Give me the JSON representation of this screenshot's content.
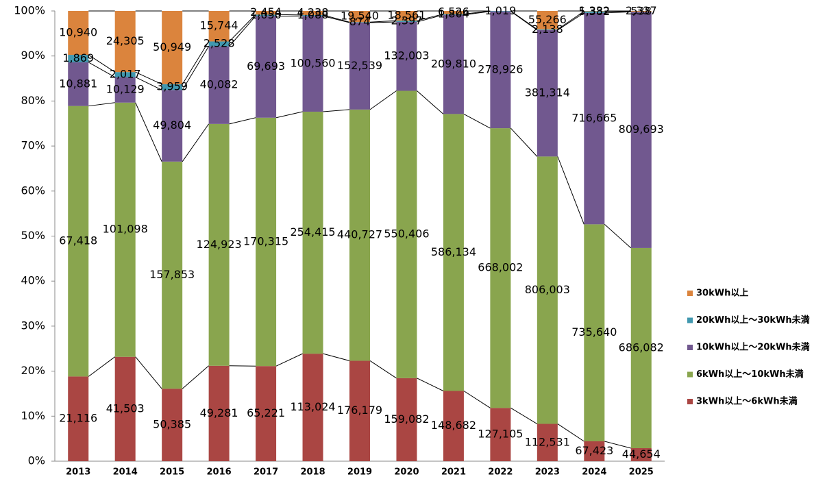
{
  "chart_data": {
    "type": "bar",
    "stacked": "percent",
    "categories": [
      "2013",
      "2014",
      "2015",
      "2016",
      "2017",
      "2018",
      "2019",
      "2020",
      "2021",
      "2022",
      "2023",
      "2024",
      "2025"
    ],
    "series": [
      {
        "name": "3kWh以上～6kWh未満",
        "color": "#aa4643",
        "values": [
          21116,
          41503,
          50385,
          49281,
          65221,
          113024,
          176179,
          159082,
          148682,
          127105,
          112531,
          67423,
          44654
        ]
      },
      {
        "name": "6kWh以上～10kWh未満",
        "color": "#89a54e",
        "values": [
          67418,
          101098,
          157853,
          124923,
          170315,
          254415,
          440727,
          550406,
          586134,
          668002,
          806003,
          735640,
          686082
        ]
      },
      {
        "name": "10kWh以上～20kWh未満",
        "color": "#71588f",
        "values": [
          10881,
          10129,
          49804,
          40082,
          69693,
          100560,
          152539,
          132003,
          209810,
          278926,
          381314,
          716665,
          809693
        ]
      },
      {
        "name": "20kWh以上～30kWh未満",
        "color": "#4198af",
        "values": [
          1869,
          2017,
          3959,
          2528,
          1050,
          1088,
          874,
          2397,
          1804,
          1019,
          2138,
          5382,
          538
        ]
      },
      {
        "name": "30kWh以上",
        "color": "#db843d",
        "values": [
          10940,
          24305,
          50949,
          15744,
          2454,
          4238,
          19540,
          18561,
          6526,
          null,
          55266,
          1332,
          2337
        ]
      }
    ],
    "ylim": [
      0,
      100
    ],
    "yticks": [
      {
        "value": 0,
        "label": "0%"
      },
      {
        "value": 10,
        "label": "10%"
      },
      {
        "value": 20,
        "label": "20%"
      },
      {
        "value": 30,
        "label": "30%"
      },
      {
        "value": 40,
        "label": "40%"
      },
      {
        "value": 50,
        "label": "50%"
      },
      {
        "value": 60,
        "label": "60%"
      },
      {
        "value": 70,
        "label": "70%"
      },
      {
        "value": 80,
        "label": "80%"
      },
      {
        "value": 90,
        "label": "90%"
      },
      {
        "value": 100,
        "label": "100%"
      }
    ],
    "grid": false,
    "legend": "right"
  }
}
